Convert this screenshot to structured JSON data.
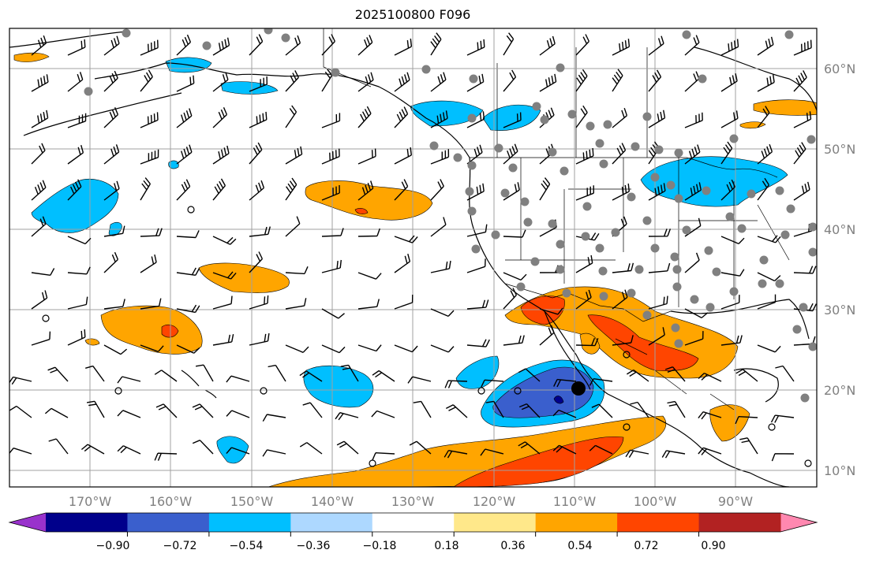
{
  "title": "2025100800 F096",
  "map": {
    "lon_range": [
      -180,
      -80
    ],
    "lat_range": [
      8,
      65
    ],
    "lon_labels": [
      "170°W",
      "160°W",
      "150°W",
      "140°W",
      "130°W",
      "120°W",
      "110°W",
      "100°W",
      "90°W"
    ],
    "lat_labels": [
      "60°N",
      "50°N",
      "40°N",
      "30°N",
      "20°N",
      "10°N"
    ],
    "gridlines": true,
    "gridline_color": "#a0a0a0",
    "barb_color": "#000000",
    "station_color": "#808080",
    "land_outline_color": "#000000"
  },
  "colorbar": {
    "tick_labels": [
      "−0.90",
      "−0.72",
      "−0.54",
      "−0.36",
      "−0.18",
      "0.18",
      "0.36",
      "0.54",
      "0.72",
      "0.90"
    ],
    "colors": [
      "#9932cc",
      "#00008b",
      "#3a5fcd",
      "#00bfff",
      "#add8ff",
      "#ffffff",
      "#ffe88a",
      "#ffa500",
      "#ff4500",
      "#b22222",
      "#ff88b0"
    ],
    "extend": "both"
  }
}
